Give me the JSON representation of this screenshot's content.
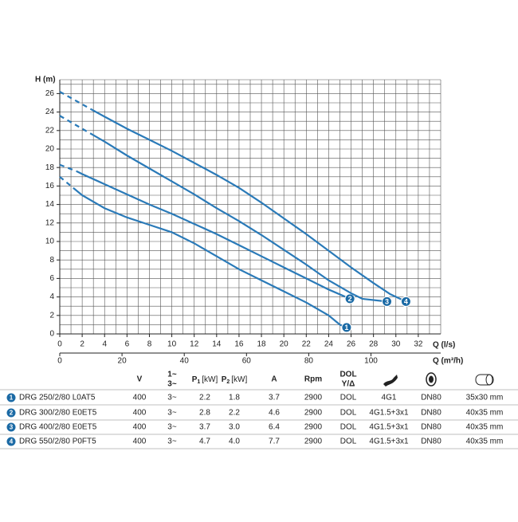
{
  "chart_data": {
    "type": "line",
    "ylabel": "H (m)",
    "xlabel": "Q (l/s)",
    "x2label": "Q (m³/h)",
    "xlim": [
      0,
      34
    ],
    "ylim": [
      0,
      27.5
    ],
    "x2lim": [
      0,
      122.4
    ],
    "xticks": [
      0,
      2,
      4,
      6,
      8,
      10,
      12,
      14,
      16,
      18,
      20,
      22,
      24,
      26,
      28,
      30,
      32
    ],
    "minor_xticks": [
      1,
      3,
      5,
      7,
      9,
      11,
      13,
      15,
      17,
      19,
      21,
      23,
      25,
      27,
      29,
      31,
      33,
      34
    ],
    "yticks": [
      0,
      2,
      4,
      6,
      8,
      10,
      12,
      14,
      16,
      18,
      20,
      22,
      24,
      26
    ],
    "minor_yticks": [
      1,
      3,
      5,
      7,
      9,
      11,
      13,
      15,
      17,
      19,
      21,
      23,
      25,
      27,
      27.5
    ],
    "x2ticks": [
      0,
      20,
      40,
      60,
      80,
      100
    ],
    "grid": true,
    "color": "#2a7ab8",
    "marker_color": "#1b6aa5",
    "series": [
      {
        "style": "dashed",
        "x": [
          0,
          1.2
        ],
        "values": [
          17,
          15.8
        ]
      },
      {
        "style": "solid",
        "label": "1",
        "x": [
          1.2,
          2,
          4,
          6,
          8,
          10,
          12,
          14,
          16,
          18,
          20,
          22,
          24,
          25,
          25.6
        ],
        "values": [
          15.8,
          15,
          13.6,
          12.6,
          11.8,
          11,
          9.8,
          8.4,
          7,
          5.8,
          4.6,
          3.4,
          2,
          1,
          0.7
        ]
      },
      {
        "style": "dashed",
        "x": [
          0,
          1.5
        ],
        "values": [
          18.3,
          17.6
        ]
      },
      {
        "style": "solid",
        "label": "2",
        "x": [
          1.5,
          2,
          4,
          6,
          8,
          10,
          12,
          14,
          16,
          18,
          20,
          22,
          24,
          25.9
        ],
        "values": [
          17.6,
          17.3,
          16.2,
          15.1,
          14,
          13,
          11.9,
          10.8,
          9.6,
          8.4,
          7.2,
          6,
          4.8,
          3.8
        ]
      },
      {
        "style": "dashed",
        "x": [
          0,
          3
        ],
        "values": [
          23.6,
          21.5
        ]
      },
      {
        "style": "solid",
        "label": "3",
        "x": [
          3,
          4,
          6,
          8,
          10,
          12,
          14,
          16,
          18,
          20,
          22,
          24,
          26,
          27,
          29.2
        ],
        "values": [
          21.5,
          20.8,
          19.3,
          17.9,
          16.5,
          15.1,
          13.6,
          12.2,
          10.7,
          9.1,
          7.5,
          5.8,
          4.4,
          3.8,
          3.5
        ]
      },
      {
        "style": "dashed",
        "x": [
          0,
          2.8
        ],
        "values": [
          26.2,
          24.3
        ]
      },
      {
        "style": "solid",
        "label": "4",
        "x": [
          2.8,
          4,
          6,
          8,
          10,
          12,
          14,
          16,
          18,
          20,
          22,
          24,
          26,
          28,
          29.5,
          30.9
        ],
        "values": [
          24.3,
          23.5,
          22.2,
          21,
          19.8,
          18.5,
          17.2,
          15.8,
          14.2,
          12.5,
          10.8,
          9,
          7.2,
          5.5,
          4.3,
          3.5
        ]
      }
    ]
  },
  "table": {
    "headers": [
      {
        "text": "V"
      },
      {
        "lines": [
          "1~",
          "3~"
        ]
      },
      {
        "text": "P",
        "sub": "1",
        "unit": "[kW]"
      },
      {
        "text": "P",
        "sub": "2",
        "unit": "[kW]"
      },
      {
        "text": "A"
      },
      {
        "text": "Rpm"
      },
      {
        "lines": [
          "DOL",
          "Y/Δ"
        ]
      }
    ],
    "rows": [
      [
        "1",
        "DRG 250/2/80 L0AT5",
        "400",
        "3~",
        "2.2",
        "1.8",
        "3.7",
        "2900",
        "DOL",
        "4G1",
        "DN80",
        "35x30 mm"
      ],
      [
        "2",
        "DRG 300/2/80 E0ET5",
        "400",
        "3~",
        "2.8",
        "2.2",
        "4.6",
        "2900",
        "DOL",
        "4G1.5+3x1",
        "DN80",
        "40x35 mm"
      ],
      [
        "3",
        "DRG 400/2/80 E0ET5",
        "400",
        "3~",
        "3.7",
        "3.0",
        "6.4",
        "2900",
        "DOL",
        "4G1.5+3x1",
        "DN80",
        "40x35 mm"
      ],
      [
        "4",
        "DRG 550/2/80 P0FT5",
        "400",
        "3~",
        "4.7",
        "4.0",
        "7.7",
        "2900",
        "DOL",
        "4G1.5+3x1",
        "DN80",
        "40x35 mm"
      ]
    ]
  }
}
